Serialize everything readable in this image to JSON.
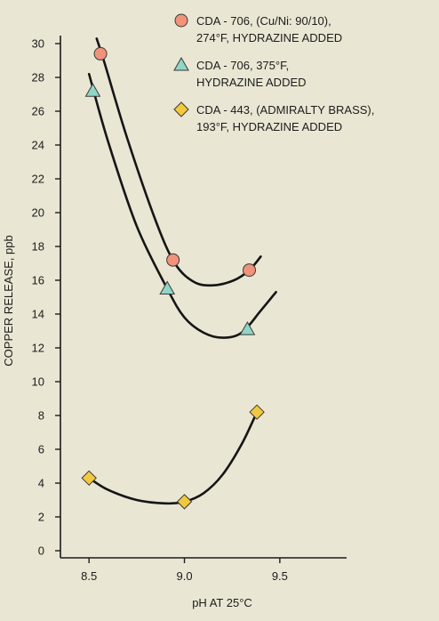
{
  "chart_data": {
    "type": "scatter",
    "xlabel": "pH AT 25°C",
    "ylabel": "COPPER RELEASE, ppb",
    "xlim": [
      8.35,
      9.85
    ],
    "ylim": [
      0,
      30
    ],
    "x_ticks": [
      "8.5",
      "9.0",
      "9.5"
    ],
    "x_tick_values": [
      8.5,
      9.0,
      9.5
    ],
    "y_ticks": [
      "0",
      "2",
      "4",
      "6",
      "8",
      "10",
      "12",
      "14",
      "16",
      "18",
      "20",
      "22",
      "24",
      "26",
      "28",
      "30"
    ],
    "y_tick_values": [
      0,
      2,
      4,
      6,
      8,
      10,
      12,
      14,
      16,
      18,
      20,
      22,
      24,
      26,
      28,
      30
    ],
    "grid": false,
    "legend_position": "top-right",
    "series": [
      {
        "name": "CDA - 706, (Cu/Ni: 90/10), 274°F, HYDRAZINE ADDED",
        "legend_lines": [
          "CDA - 706, (Cu/Ni: 90/10),",
          "274°F, HYDRAZINE ADDED"
        ],
        "marker": "circle",
        "color": "#f0937a",
        "points": [
          {
            "x": 8.56,
            "y": 29.4
          },
          {
            "x": 8.94,
            "y": 17.2
          },
          {
            "x": 9.34,
            "y": 16.6
          }
        ],
        "curve": [
          [
            8.54,
            30.3
          ],
          [
            8.58,
            28.9
          ],
          [
            8.7,
            24.4
          ],
          [
            8.85,
            19.5
          ],
          [
            8.95,
            17.0
          ],
          [
            9.05,
            15.9
          ],
          [
            9.15,
            15.7
          ],
          [
            9.26,
            16.0
          ],
          [
            9.34,
            16.6
          ],
          [
            9.4,
            17.4
          ]
        ]
      },
      {
        "name": "CDA - 706, 375°F, HYDRAZINE ADDED",
        "legend_lines": [
          "CDA - 706, 375°F,",
          "HYDRAZINE ADDED"
        ],
        "marker": "triangle",
        "color": "#8fd6c8",
        "points": [
          {
            "x": 8.52,
            "y": 27.2
          },
          {
            "x": 8.91,
            "y": 15.5
          },
          {
            "x": 9.33,
            "y": 13.1
          }
        ],
        "curve": [
          [
            8.5,
            28.2
          ],
          [
            8.6,
            24.2
          ],
          [
            8.75,
            19.2
          ],
          [
            8.91,
            15.5
          ],
          [
            9.0,
            13.8
          ],
          [
            9.1,
            12.9
          ],
          [
            9.2,
            12.6
          ],
          [
            9.3,
            12.9
          ],
          [
            9.4,
            14.2
          ],
          [
            9.48,
            15.3
          ]
        ]
      },
      {
        "name": "CDA - 443, (ADMIRALTY BRASS), 193°F, HYDRAZINE ADDED",
        "legend_lines": [
          "CDA - 443, (ADMIRALTY BRASS),",
          "193°F, HYDRAZINE ADDED"
        ],
        "marker": "diamond",
        "color": "#f2c83e",
        "points": [
          {
            "x": 8.5,
            "y": 4.3
          },
          {
            "x": 9.0,
            "y": 2.9
          },
          {
            "x": 9.38,
            "y": 8.2
          }
        ],
        "curve": [
          [
            8.5,
            4.3
          ],
          [
            8.6,
            3.6
          ],
          [
            8.75,
            3.0
          ],
          [
            8.9,
            2.8
          ],
          [
            9.0,
            2.9
          ],
          [
            9.1,
            3.4
          ],
          [
            9.2,
            4.5
          ],
          [
            9.3,
            6.3
          ],
          [
            9.38,
            8.2
          ]
        ]
      }
    ]
  }
}
